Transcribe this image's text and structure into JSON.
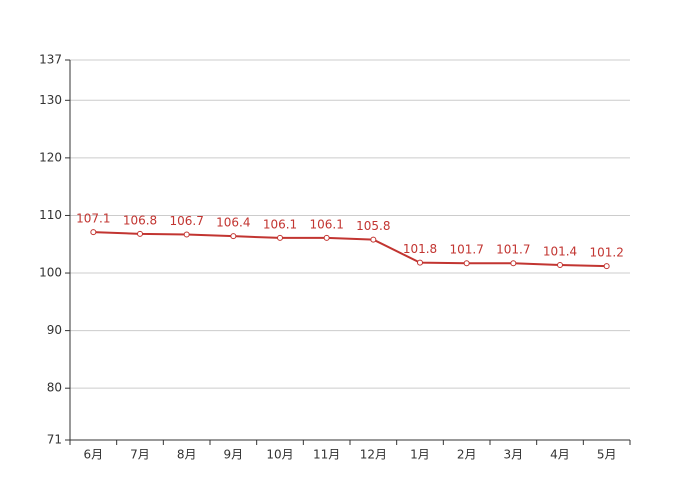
{
  "chart_data": {
    "type": "line",
    "categories": [
      "6月",
      "7月",
      "8月",
      "9月",
      "10月",
      "11月",
      "12月",
      "1月",
      "2月",
      "3月",
      "4月",
      "5月"
    ],
    "values": [
      107.1,
      106.8,
      106.7,
      106.4,
      106.1,
      106.1,
      105.8,
      101.8,
      101.7,
      101.7,
      101.4,
      101.2
    ],
    "color": "#c23531",
    "ylim": [
      71,
      137
    ],
    "yticks": [
      71,
      80,
      90,
      100,
      110,
      120,
      130,
      137
    ],
    "grid": true
  }
}
